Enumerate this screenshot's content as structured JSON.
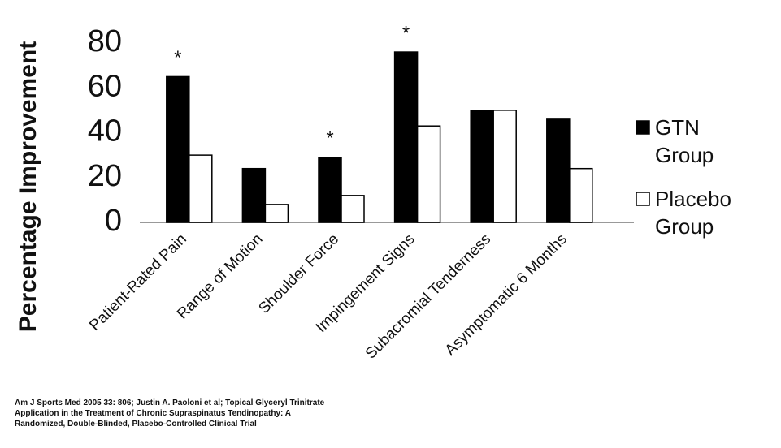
{
  "chart_data": {
    "type": "bar",
    "y_label": "Percentage Improvement",
    "categories": [
      "Patient-Rated Pain",
      "Range of Motion",
      "Shoulder Force",
      "Impingement Signs",
      "Subacromial Tenderness",
      "Asymptomatic 6 Months"
    ],
    "series": [
      {
        "name": "GTN Group",
        "color": "#000000",
        "values": [
          65,
          24,
          29,
          76,
          50,
          46
        ]
      },
      {
        "name": "Placebo Group",
        "color": "#ffffff",
        "values": [
          30,
          8,
          12,
          43,
          50,
          24
        ]
      }
    ],
    "significance": [
      "*",
      null,
      "*",
      "*",
      null,
      null
    ],
    "ylim": [
      0,
      80
    ],
    "yticks": [
      0,
      20,
      40,
      60,
      80
    ],
    "grid": false,
    "legend": "right"
  },
  "citation": "Am J Sports Med 2005 33: 806; Justin A. Paoloni et al; Topical Glyceryl Trinitrate Application in the Treatment of Chronic Supraspinatus Tendinopathy: A Randomized, Double-Blinded, Placebo-Controlled Clinical Trial"
}
